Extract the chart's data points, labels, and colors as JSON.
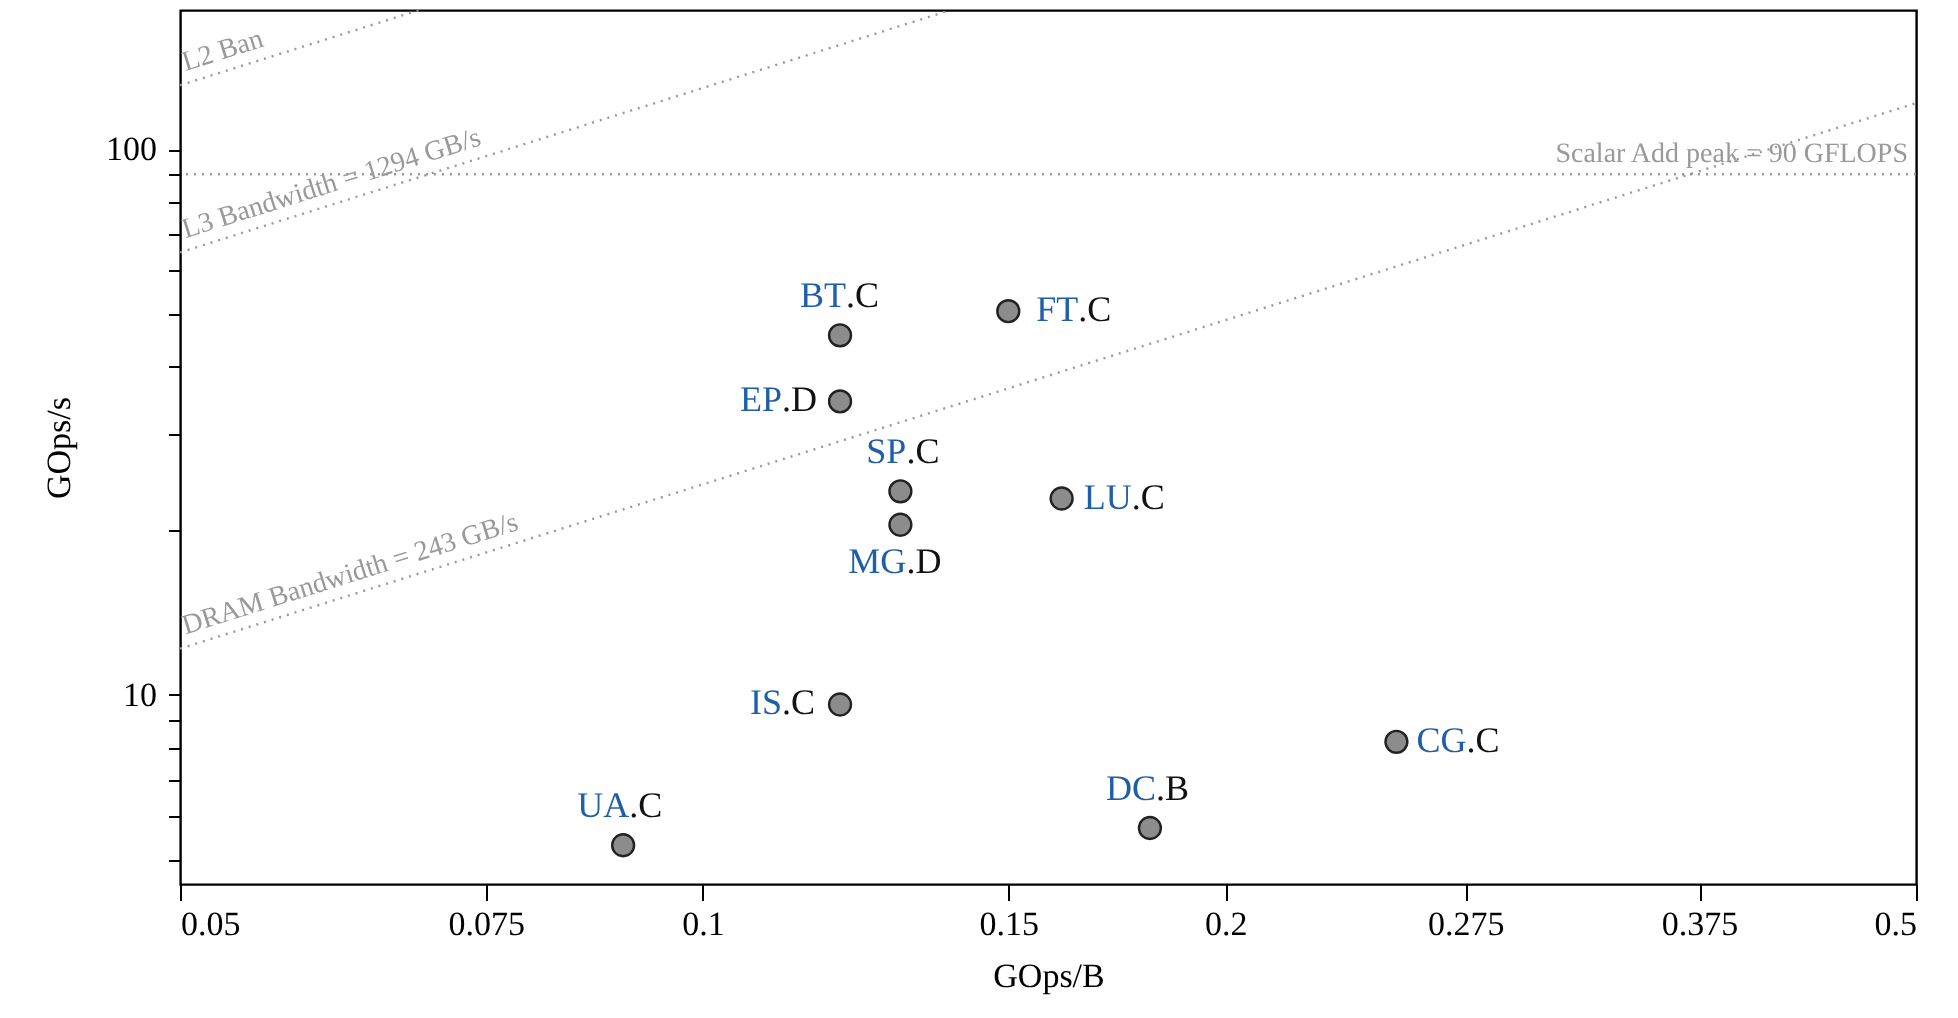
{
  "chart_data": {
    "type": "scatter",
    "xlabel": "GOps/B",
    "ylabel": "GOps/s",
    "log": "xy",
    "grid": false,
    "marker": "circle",
    "xlim": [
      0.05,
      0.5
    ],
    "ylim": [
      4.5,
      180
    ],
    "xticks": [
      0.05,
      0.075,
      0.1,
      0.15,
      0.2,
      0.275,
      0.375,
      0.5
    ],
    "yticks": [
      {
        "value": 5,
        "label": null
      },
      {
        "value": 6,
        "label": null
      },
      {
        "value": 7,
        "label": null
      },
      {
        "value": 8,
        "label": null
      },
      {
        "value": 9,
        "label": null
      },
      10,
      {
        "value": 20,
        "label": null
      },
      {
        "value": 30,
        "label": null
      },
      {
        "value": 40,
        "label": null
      },
      {
        "value": 50,
        "label": null
      },
      {
        "value": 60,
        "label": null
      },
      {
        "value": 70,
        "label": null
      },
      {
        "value": 80,
        "label": null
      },
      {
        "value": 90,
        "label": null
      },
      100
    ],
    "series": [
      {
        "color": "#8c8c8c",
        "x": [
          0.12,
          0.12,
          0.15,
          0.13,
          0.13,
          0.161,
          0.12,
          0.09,
          0.181,
          0.251
        ],
        "values": [
          45.6,
          34.5,
          50.5,
          23.6,
          20.5,
          22.9,
          9.6,
          5.3,
          5.7,
          8.2
        ]
      },
      {
        "type": "line",
        "name": "DRAM Bandwidth = 243 GB/s",
        "marker": "none",
        "color": "#999999",
        "line_style": "dotted",
        "x": [
          0.05,
          0.5
        ],
        "values": [
          12.15,
          121.5
        ]
      },
      {
        "type": "line",
        "name": "L3 Bandwidth = 1294 GB/s",
        "marker": "none",
        "color": "#999999",
        "line_style": "dotted",
        "x": [
          0.05,
          0.139
        ],
        "values": [
          64.7,
          180
        ]
      },
      {
        "type": "line",
        "name": "L2 Ban",
        "marker": "none",
        "color": "#999999",
        "line_style": "dotted",
        "x": [
          0.05,
          0.0687
        ],
        "values": [
          131,
          180
        ]
      }
    ],
    "ref_lines": [
      {
        "axis": "y",
        "value": 90,
        "label": "Scalar Add peak = 90 GFLOPS",
        "color": "#999999",
        "line_style": "dotted"
      }
    ],
    "annotations": [
      {
        "text": "BT.C",
        "x": 0.12,
        "y": 45.6
      },
      {
        "text": "EP.D",
        "x": 0.12,
        "y": 34.5
      },
      {
        "text": "FT.C",
        "x": 0.15,
        "y": 50.5
      },
      {
        "text": "SP.C",
        "x": 0.13,
        "y": 23.6
      },
      {
        "text": "MG.D",
        "x": 0.13,
        "y": 20.5
      },
      {
        "text": "LU.C",
        "x": 0.161,
        "y": 22.9
      },
      {
        "text": "IS.C",
        "x": 0.12,
        "y": 9.6
      },
      {
        "text": "UA.C",
        "x": 0.09,
        "y": 5.3
      },
      {
        "text": "DC.B",
        "x": 0.181,
        "y": 5.7
      },
      {
        "text": "CG.C",
        "x": 0.251,
        "y": 8.2
      }
    ]
  }
}
